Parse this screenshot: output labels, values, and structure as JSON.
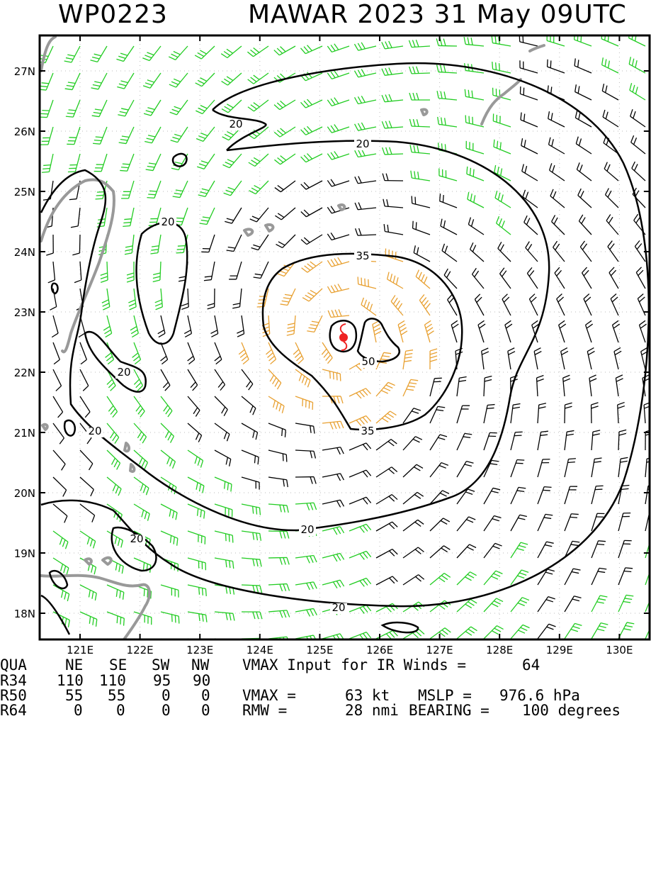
{
  "header": {
    "storm_id": "WP0223",
    "storm_title": "MAWAR 2023 31 May 09UTC"
  },
  "map": {
    "lon_ticks": [
      "121E",
      "122E",
      "123E",
      "124E",
      "125E",
      "126E",
      "127E",
      "128E",
      "129E",
      "130E"
    ],
    "lat_ticks": [
      "27N",
      "26N",
      "25N",
      "24N",
      "23N",
      "22N",
      "21N",
      "20N",
      "19N",
      "18N"
    ],
    "contour_labels": [
      "20",
      "20",
      "20",
      "20",
      "20",
      "20",
      "20",
      "20",
      "35",
      "35",
      "50"
    ],
    "colors": {
      "barb_low": "#22cc22",
      "barb_mid": "#000000",
      "barb_high": "#e8a030",
      "coast": "#999999",
      "contour": "#000000",
      "center_marker": "#ee2222"
    }
  },
  "table": {
    "header": [
      "QUA",
      "NE",
      "SE",
      "SW",
      "NW"
    ],
    "rows": [
      {
        "label": "R34",
        "values": [
          "110",
          "110",
          "95",
          "90"
        ]
      },
      {
        "label": "R50",
        "values": [
          "55",
          "55",
          "0",
          "0"
        ]
      },
      {
        "label": "R64",
        "values": [
          "0",
          "0",
          "0",
          "0"
        ]
      }
    ]
  },
  "info": {
    "vmax_input_label": "VMAX Input for IR Winds =",
    "vmax_input_value": "64",
    "vmax_label": "VMAX =",
    "vmax_value": "63 kt",
    "mslp_label": "MSLP =",
    "mslp_value": "976.6 hPa",
    "rmw_label": "RMW =",
    "rmw_value": "28 nmi",
    "bearing_label": "BEARING =",
    "bearing_value": "100 degrees"
  }
}
